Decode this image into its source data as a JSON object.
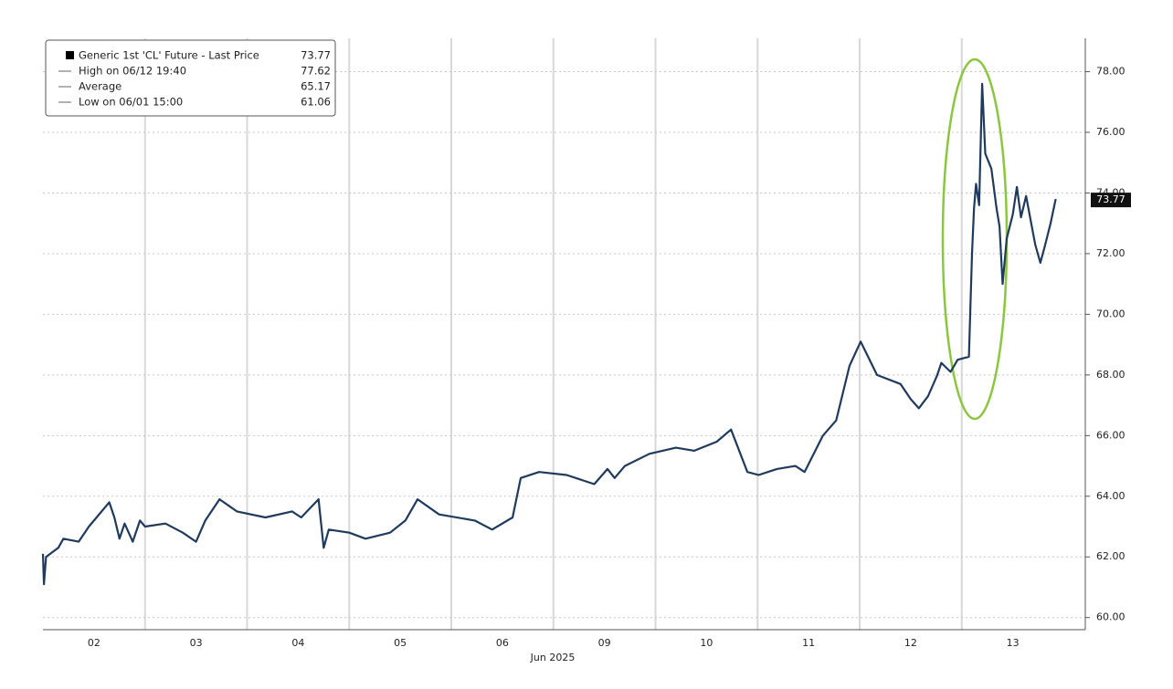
{
  "chart_data": {
    "type": "line",
    "legend": [
      {
        "label": "Generic 1st 'CL' Future - Last Price",
        "value": 73.77
      },
      {
        "label": "High on 06/12 19:40",
        "value": 77.62
      },
      {
        "label": "Average",
        "value": 65.17
      },
      {
        "label": "Low on 06/01 15:00",
        "value": 61.06
      }
    ],
    "x_title": "Jun 2025",
    "xlim": [
      0,
      10.21
    ],
    "xticks": [
      {
        "value": 0.5,
        "label": "02"
      },
      {
        "value": 1.5,
        "label": "03"
      },
      {
        "value": 2.5,
        "label": "04"
      },
      {
        "value": 3.5,
        "label": "05"
      },
      {
        "value": 4.5,
        "label": "06"
      },
      {
        "value": 5.5,
        "label": "09"
      },
      {
        "value": 6.5,
        "label": "10"
      },
      {
        "value": 7.5,
        "label": "11"
      },
      {
        "value": 8.5,
        "label": "12"
      },
      {
        "value": 9.5,
        "label": "13"
      }
    ],
    "x_gridlines": [
      1,
      2,
      3,
      4,
      5,
      6,
      7,
      8,
      9
    ],
    "ylim": [
      59.6,
      79.1
    ],
    "yticks": [
      {
        "value": 60,
        "label": "60.00"
      },
      {
        "value": 62,
        "label": "62.00"
      },
      {
        "value": 64,
        "label": "64.00"
      },
      {
        "value": 66,
        "label": "66.00"
      },
      {
        "value": 68,
        "label": "68.00"
      },
      {
        "value": 70,
        "label": "70.00"
      },
      {
        "value": 72,
        "label": "72.00"
      },
      {
        "value": 74,
        "label": "74.00"
      },
      {
        "value": 76,
        "label": "76.00"
      },
      {
        "value": 78,
        "label": "78.00"
      }
    ],
    "grid": true,
    "x": [
      0,
      0.01,
      0.03,
      0.15,
      0.2,
      0.35,
      0.45,
      0.65,
      0.7,
      0.75,
      0.8,
      0.88,
      0.95,
      1.0,
      1.2,
      1.37,
      1.5,
      1.59,
      1.73,
      1.9,
      2.18,
      2.44,
      2.53,
      2.7,
      2.75,
      2.8,
      3.0,
      3.16,
      3.4,
      3.55,
      3.67,
      3.88,
      4.23,
      4.4,
      4.6,
      4.68,
      4.86,
      5.13,
      5.4,
      5.53,
      5.6,
      5.7,
      5.94,
      6.2,
      6.38,
      6.6,
      6.74,
      6.9,
      7.01,
      7.19,
      7.37,
      7.46,
      7.64,
      7.77,
      7.9,
      8.01,
      8.17,
      8.4,
      8.5,
      8.58,
      8.67,
      8.76,
      8.8,
      8.89,
      8.96,
      9.07,
      9.1,
      9.12,
      9.14,
      9.17,
      9.2,
      9.23,
      9.29,
      9.34,
      9.37,
      9.4,
      9.44,
      9.5,
      9.54,
      9.58,
      9.63,
      9.68,
      9.72,
      9.77,
      9.81,
      9.87,
      9.92
    ],
    "series": [
      {
        "name": "Generic 1st 'CL' Future - Last Price",
        "color": "#1f3a5c",
        "values": [
          62.1,
          61.1,
          62.0,
          62.3,
          62.6,
          62.5,
          63.0,
          63.8,
          63.3,
          62.6,
          63.1,
          62.5,
          63.2,
          63.0,
          63.1,
          62.8,
          62.5,
          63.2,
          63.9,
          63.5,
          63.3,
          63.5,
          63.3,
          63.9,
          62.3,
          62.9,
          62.8,
          62.6,
          62.8,
          63.2,
          63.9,
          63.4,
          63.2,
          62.9,
          63.3,
          64.6,
          64.8,
          64.7,
          64.4,
          64.9,
          64.6,
          65.0,
          65.4,
          65.6,
          65.5,
          65.8,
          66.2,
          64.8,
          64.7,
          64.9,
          65.0,
          64.8,
          66.0,
          66.5,
          68.3,
          69.1,
          68.0,
          67.7,
          67.2,
          66.9,
          67.3,
          68.0,
          68.4,
          68.1,
          68.5,
          68.6,
          72.0,
          73.5,
          74.3,
          73.6,
          77.6,
          75.3,
          74.8,
          73.5,
          72.9,
          71.0,
          72.5,
          73.3,
          74.2,
          73.2,
          73.9,
          73.0,
          72.3,
          71.7,
          72.2,
          73.0,
          73.8
        ]
      }
    ],
    "last_price": 73.77
  }
}
